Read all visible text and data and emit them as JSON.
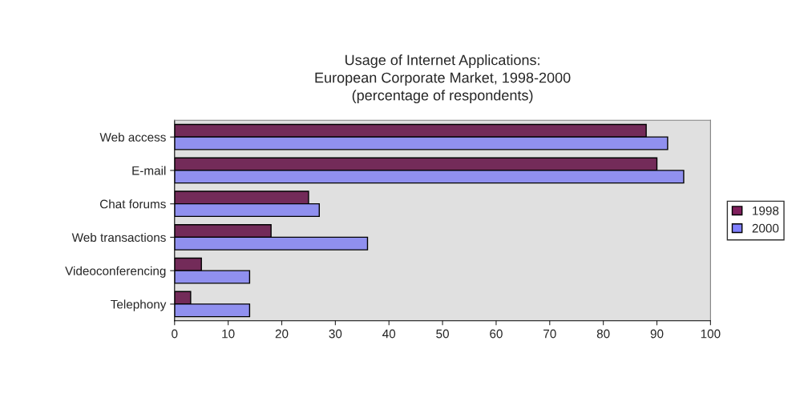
{
  "chart_data": {
    "type": "bar",
    "orientation": "horizontal",
    "title": "Usage of Internet Applications:\nEuropean Corporate Market, 1998-2000\n(percentage of respondents)",
    "categories": [
      "Web access",
      "E-mail",
      "Chat forums",
      "Web transactions",
      "Videoconferencing",
      "Telephony"
    ],
    "series": [
      {
        "name": "1998",
        "color": "#7f1f5c",
        "values": [
          88,
          90,
          25,
          18,
          5,
          3
        ]
      },
      {
        "name": "2000",
        "color": "#8080ff",
        "values": [
          92,
          95,
          27,
          36,
          14,
          14
        ]
      }
    ],
    "xlim": [
      0,
      100
    ],
    "xticks": [
      0,
      10,
      20,
      30,
      40,
      50,
      60,
      70,
      80,
      90,
      100
    ],
    "grid": false,
    "legend": "right"
  }
}
